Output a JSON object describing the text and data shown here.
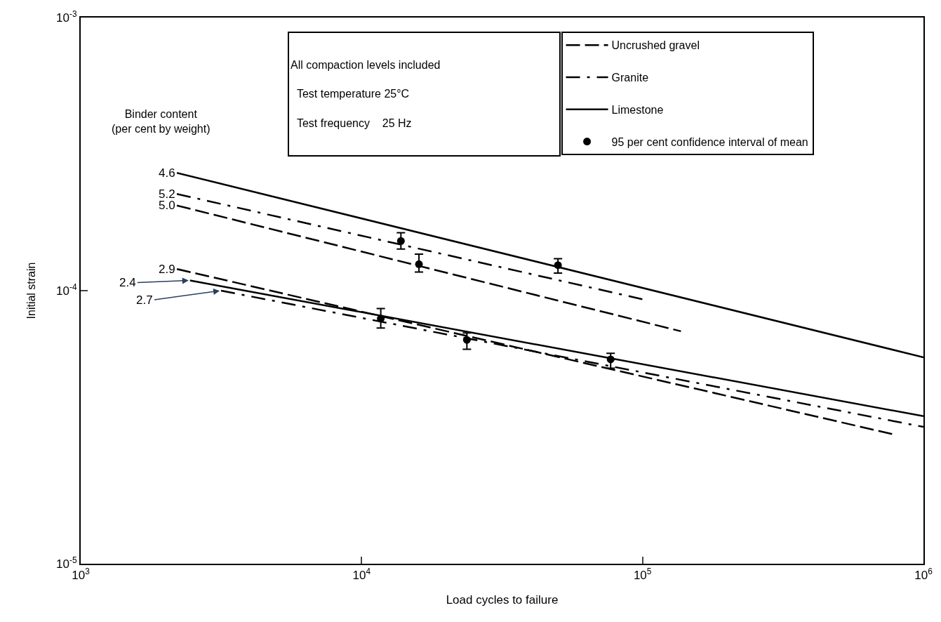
{
  "chart_data": {
    "type": "line",
    "xlabel": "Load cycles to failure",
    "ylabel": "Initial strain",
    "log": "xy",
    "grid": false,
    "legend": "top right",
    "marker": "none",
    "xlim": [
      1000,
      1000000
    ],
    "xticks": [
      {
        "value": 1000,
        "label": "10$^{3}$"
      },
      {
        "value": 10000,
        "label": "10$^{4}$"
      },
      {
        "value": 100000,
        "label": "10$^{5}$"
      },
      {
        "value": 1000000,
        "label": "10$^{6}$"
      }
    ],
    "ylim": [
      1e-05,
      0.001
    ],
    "yticks": [
      {
        "value": 1e-05,
        "label": "10$^{-5}$"
      },
      {
        "value": 0.0001,
        "label": "10$^{-4}$"
      },
      {
        "value": 0.001,
        "label": "10$^{-3}$"
      }
    ],
    "series": [
      {
        "name": "Uncrushed gravel",
        "color": "#000000",
        "line_style": "dashed",
        "x": [
          2200,
          137000
        ],
        "values": [
          0.000205,
          7.1e-05
        ]
      },
      {
        "name": "Granite",
        "color": "#000000",
        "line_style": "dashdot",
        "x": [
          2200,
          100000
        ],
        "values": [
          0.000226,
          9.3e-05
        ]
      },
      {
        "name": "Limestone",
        "color": "#000000",
        "line_style": "solid",
        "x": [
          2200,
          1000000
        ],
        "values": [
          0.00027,
          5.7e-05
        ]
      },
      {
        "color": "#000000",
        "line_style": "dashed",
        "x": [
          2200,
          790000
        ],
        "values": [
          0.00012,
          2.97e-05
        ]
      },
      {
        "color": "#000000",
        "line_style": "dashdot",
        "x": [
          3160,
          1000000
        ],
        "values": [
          0.0001,
          3.17e-05
        ]
      },
      {
        "color": "#000000",
        "line_style": "solid",
        "x": [
          2450,
          1000000
        ],
        "values": [
          0.000109,
          3.47e-05
        ]
      },
      {
        "name": "95 per cent confidence interval of mean",
        "type": "scatter",
        "marker": "circle",
        "color": "#000000",
        "x": [
          13800,
          16000,
          50000,
          11700,
          23700,
          77000
        ],
        "values": [
          0.000152,
          0.000125,
          0.000124,
          7.9e-05,
          6.6e-05,
          5.6e-05
        ],
        "errors": [
          [
            0.000142,
            0.000163
          ],
          [
            0.000117,
            0.000136
          ],
          [
            0.000116,
            0.000131
          ],
          [
            7.3e-05,
            8.6e-05
          ],
          [
            6.1e-05,
            7e-05
          ],
          [
            5.2e-05,
            5.9e-05
          ]
        ]
      }
    ],
    "annotations": [
      "Binder content\n(per cent by weight)",
      "All compaction levels included",
      "Test temperature 25°C",
      "Test frequency    25 Hz",
      {
        "text": "4.6",
        "x": 2200,
        "y": 0.00027
      },
      {
        "text": "5.2",
        "x": 2200,
        "y": 0.000226
      },
      {
        "text": "5.0",
        "x": 2200,
        "y": 0.000205
      },
      {
        "text": "2.9",
        "x": 2200,
        "y": 0.00012
      },
      {
        "text": "2.4",
        "x": 2450,
        "y": 0.000109
      },
      {
        "text": "2.7",
        "x": 3160,
        "y": 0.0001
      }
    ]
  }
}
